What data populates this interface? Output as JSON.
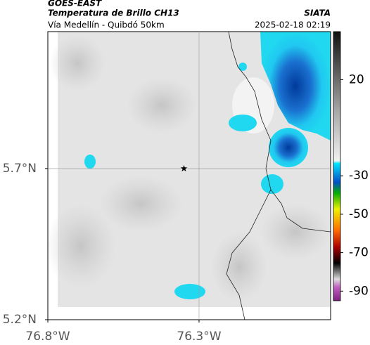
{
  "chart_data": {
    "type": "map",
    "title": "GOES-EAST",
    "subtitle": "Temperatura de Brillo CH13",
    "region": "Vía Medellín - Quibdó 50km",
    "source": "SIATA",
    "datetime": "2025-02-18 02:19",
    "xlim": [
      -76.8,
      -75.865
    ],
    "ylim": [
      5.2,
      6.153
    ],
    "xticks": [
      {
        "value": -76.8,
        "label": "76.8°W"
      },
      {
        "value": -76.3,
        "label": "76.3°W"
      }
    ],
    "yticks": [
      {
        "value": 5.7,
        "label": "5.7°N"
      },
      {
        "value": 5.2,
        "label": "5.2°N"
      }
    ],
    "grid": true,
    "marker": {
      "lon": -76.35,
      "lat": 5.7
    },
    "colorbar": {
      "lim": [
        -95,
        45
      ],
      "ticks": [
        20,
        -30,
        -50,
        -70,
        -90
      ]
    }
  }
}
